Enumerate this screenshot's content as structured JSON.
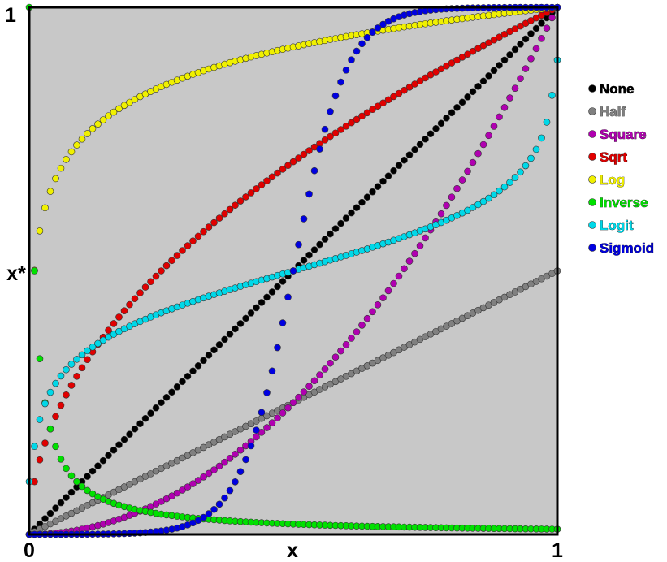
{
  "chart_data": {
    "type": "scatter",
    "title": "",
    "xlabel": "x",
    "ylabel": "x*",
    "xlim": [
      0,
      1
    ],
    "ylim": [
      0,
      1
    ],
    "x_ticks": [
      "0",
      "1"
    ],
    "y_ticks": [
      "1"
    ],
    "grid": false,
    "background": "#c8c8c8",
    "legend_position": "right",
    "n_points": 101,
    "series": [
      {
        "name": "None",
        "color": "#000000",
        "function": "x"
      },
      {
        "name": "Half",
        "color": "#808080",
        "function": "x/2"
      },
      {
        "name": "Square",
        "color": "#b000b0",
        "function": "x^2"
      },
      {
        "name": "Sqrt",
        "color": "#e00000",
        "function": "sqrt(x)"
      },
      {
        "name": "Log",
        "color": "#f0f000",
        "function": "log"
      },
      {
        "name": "Inverse",
        "color": "#00e000",
        "function": "inverse"
      },
      {
        "name": "Logit",
        "color": "#00d8e8",
        "function": "logit"
      },
      {
        "name": "Sigmoid",
        "color": "#0000e0",
        "function": "sigmoid"
      }
    ]
  }
}
